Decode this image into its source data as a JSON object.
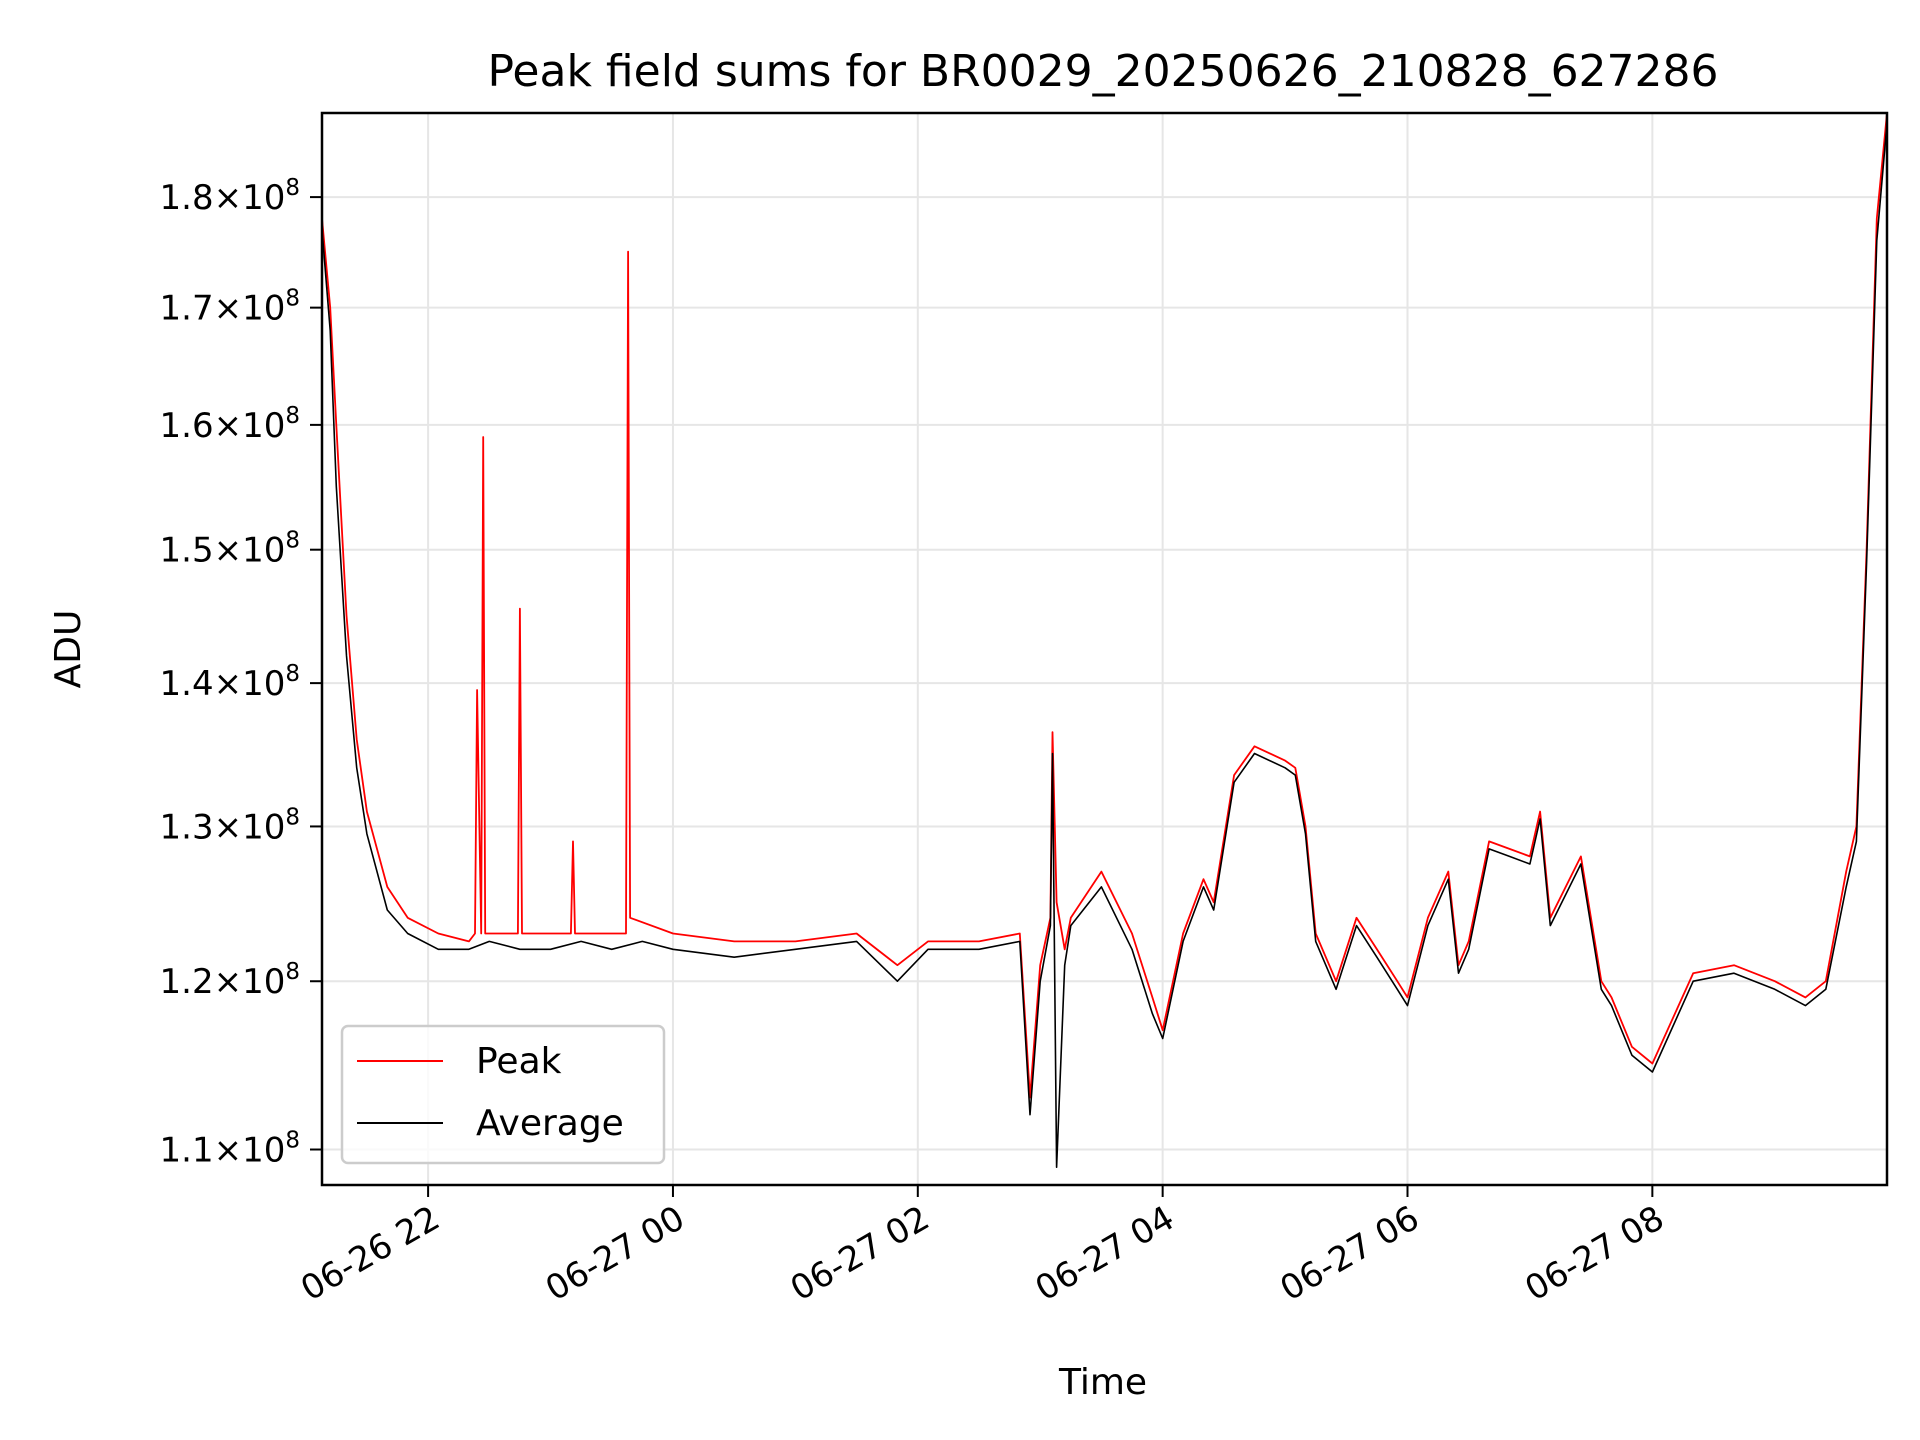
{
  "chart_data": {
    "type": "line",
    "title": "Peak field sums for BR0029_20250626_210828_627286",
    "xlabel": "Time",
    "ylabel": "ADU",
    "y_scale": "log",
    "x_range": [
      "2025-06-26 21:08",
      "2025-06-27 09:55"
    ],
    "ylim": [
      108000000,
      188000000
    ],
    "grid": true,
    "legend_position": "lower-left",
    "x_ticks": [
      {
        "value": "2025-06-26 22:00",
        "label": "06-26 22"
      },
      {
        "value": "2025-06-27 00:00",
        "label": "06-27 00"
      },
      {
        "value": "2025-06-27 02:00",
        "label": "06-27 02"
      },
      {
        "value": "2025-06-27 04:00",
        "label": "06-27 04"
      },
      {
        "value": "2025-06-27 06:00",
        "label": "06-27 06"
      },
      {
        "value": "2025-06-27 08:00",
        "label": "06-27 08"
      }
    ],
    "y_ticks": [
      {
        "value": 110000000,
        "mantissa": "1.1",
        "exp": "8"
      },
      {
        "value": 120000000,
        "mantissa": "1.2",
        "exp": "8"
      },
      {
        "value": 130000000,
        "mantissa": "1.3",
        "exp": "8"
      },
      {
        "value": 140000000,
        "mantissa": "1.4",
        "exp": "8"
      },
      {
        "value": 150000000,
        "mantissa": "1.5",
        "exp": "8"
      },
      {
        "value": 160000000,
        "mantissa": "1.6",
        "exp": "8"
      },
      {
        "value": 170000000,
        "mantissa": "1.7",
        "exp": "8"
      },
      {
        "value": 180000000,
        "mantissa": "1.8",
        "exp": "8"
      }
    ],
    "series": [
      {
        "name": "Peak",
        "color": "#ff0000",
        "x": [
          "2025-06-26 21:08",
          "2025-06-26 21:12",
          "2025-06-26 21:15",
          "2025-06-26 21:20",
          "2025-06-26 21:25",
          "2025-06-26 21:30",
          "2025-06-26 21:40",
          "2025-06-26 21:50",
          "2025-06-26 22:05",
          "2025-06-26 22:20",
          "2025-06-26 22:23",
          "2025-06-26 22:24",
          "2025-06-26 22:26",
          "2025-06-26 22:27",
          "2025-06-26 22:28",
          "2025-06-26 22:40",
          "2025-06-26 22:44",
          "2025-06-26 22:45",
          "2025-06-26 22:46",
          "2025-06-26 23:00",
          "2025-06-26 23:10",
          "2025-06-26 23:11",
          "2025-06-26 23:12",
          "2025-06-26 23:30",
          "2025-06-26 23:37",
          "2025-06-26 23:38",
          "2025-06-26 23:39",
          "2025-06-27 00:00",
          "2025-06-27 00:30",
          "2025-06-27 01:00",
          "2025-06-27 01:30",
          "2025-06-27 01:50",
          "2025-06-27 02:05",
          "2025-06-27 02:30",
          "2025-06-27 02:50",
          "2025-06-27 02:55",
          "2025-06-27 03:00",
          "2025-06-27 03:05",
          "2025-06-27 03:06",
          "2025-06-27 03:08",
          "2025-06-27 03:12",
          "2025-06-27 03:15",
          "2025-06-27 03:30",
          "2025-06-27 03:45",
          "2025-06-27 03:55",
          "2025-06-27 04:00",
          "2025-06-27 04:10",
          "2025-06-27 04:20",
          "2025-06-27 04:25",
          "2025-06-27 04:35",
          "2025-06-27 04:45",
          "2025-06-27 05:00",
          "2025-06-27 05:05",
          "2025-06-27 05:10",
          "2025-06-27 05:15",
          "2025-06-27 05:25",
          "2025-06-27 05:35",
          "2025-06-27 05:45",
          "2025-06-27 05:55",
          "2025-06-27 06:00",
          "2025-06-27 06:10",
          "2025-06-27 06:20",
          "2025-06-27 06:25",
          "2025-06-27 06:30",
          "2025-06-27 06:40",
          "2025-06-27 06:50",
          "2025-06-27 07:00",
          "2025-06-27 07:05",
          "2025-06-27 07:10",
          "2025-06-27 07:25",
          "2025-06-27 07:35",
          "2025-06-27 07:40",
          "2025-06-27 07:50",
          "2025-06-27 08:00",
          "2025-06-27 08:20",
          "2025-06-27 08:40",
          "2025-06-27 09:00",
          "2025-06-27 09:15",
          "2025-06-27 09:25",
          "2025-06-27 09:35",
          "2025-06-27 09:40",
          "2025-06-27 09:45",
          "2025-06-27 09:50",
          "2025-06-27 09:55"
        ],
        "values": [
          178000000,
          170000000,
          160000000,
          145000000,
          136000000,
          131000000,
          126000000,
          124000000,
          123000000,
          122500000,
          123000000,
          139500000,
          123000000,
          159000000,
          123000000,
          123000000,
          123000000,
          145500000,
          123000000,
          123000000,
          123000000,
          129000000,
          123000000,
          123000000,
          123000000,
          175000000,
          124000000,
          123000000,
          122500000,
          122500000,
          123000000,
          121000000,
          122500000,
          122500000,
          123000000,
          113000000,
          121000000,
          124000000,
          136500000,
          125000000,
          122000000,
          124000000,
          127000000,
          123000000,
          119000000,
          117000000,
          123000000,
          126500000,
          125000000,
          133500000,
          135500000,
          134500000,
          134000000,
          130000000,
          123000000,
          120000000,
          124000000,
          122000000,
          120000000,
          119000000,
          124000000,
          127000000,
          121000000,
          122500000,
          129000000,
          128500000,
          128000000,
          131000000,
          124000000,
          128000000,
          120000000,
          119000000,
          116000000,
          115000000,
          120500000,
          121000000,
          120000000,
          119000000,
          120000000,
          127000000,
          130000000,
          150000000,
          178000000,
          188000000
        ]
      },
      {
        "name": "Average",
        "color": "#000000",
        "x": [
          "2025-06-26 21:08",
          "2025-06-26 21:12",
          "2025-06-26 21:15",
          "2025-06-26 21:20",
          "2025-06-26 21:25",
          "2025-06-26 21:30",
          "2025-06-26 21:40",
          "2025-06-26 21:50",
          "2025-06-26 22:05",
          "2025-06-26 22:20",
          "2025-06-26 22:30",
          "2025-06-26 22:45",
          "2025-06-26 23:00",
          "2025-06-26 23:15",
          "2025-06-26 23:30",
          "2025-06-26 23:45",
          "2025-06-27 00:00",
          "2025-06-27 00:30",
          "2025-06-27 01:00",
          "2025-06-27 01:30",
          "2025-06-27 01:50",
          "2025-06-27 02:05",
          "2025-06-27 02:30",
          "2025-06-27 02:50",
          "2025-06-27 02:55",
          "2025-06-27 03:00",
          "2025-06-27 03:05",
          "2025-06-27 03:06",
          "2025-06-27 03:08",
          "2025-06-27 03:12",
          "2025-06-27 03:15",
          "2025-06-27 03:30",
          "2025-06-27 03:45",
          "2025-06-27 03:55",
          "2025-06-27 04:00",
          "2025-06-27 04:10",
          "2025-06-27 04:20",
          "2025-06-27 04:25",
          "2025-06-27 04:35",
          "2025-06-27 04:45",
          "2025-06-27 05:00",
          "2025-06-27 05:05",
          "2025-06-27 05:10",
          "2025-06-27 05:15",
          "2025-06-27 05:25",
          "2025-06-27 05:35",
          "2025-06-27 05:45",
          "2025-06-27 05:55",
          "2025-06-27 06:00",
          "2025-06-27 06:10",
          "2025-06-27 06:20",
          "2025-06-27 06:25",
          "2025-06-27 06:30",
          "2025-06-27 06:40",
          "2025-06-27 06:50",
          "2025-06-27 07:00",
          "2025-06-27 07:05",
          "2025-06-27 07:10",
          "2025-06-27 07:25",
          "2025-06-27 07:35",
          "2025-06-27 07:40",
          "2025-06-27 07:50",
          "2025-06-27 08:00",
          "2025-06-27 08:20",
          "2025-06-27 08:40",
          "2025-06-27 09:00",
          "2025-06-27 09:15",
          "2025-06-27 09:25",
          "2025-06-27 09:35",
          "2025-06-27 09:40",
          "2025-06-27 09:45",
          "2025-06-27 09:50",
          "2025-06-27 09:55"
        ],
        "values": [
          177000000,
          168000000,
          155000000,
          142000000,
          134000000,
          129500000,
          124500000,
          123000000,
          122000000,
          122000000,
          122500000,
          122000000,
          122000000,
          122500000,
          122000000,
          122500000,
          122000000,
          121500000,
          122000000,
          122500000,
          120000000,
          122000000,
          122000000,
          122500000,
          112000000,
          120000000,
          123500000,
          135000000,
          109000000,
          121000000,
          123500000,
          126000000,
          122000000,
          118000000,
          116500000,
          122500000,
          126000000,
          124500000,
          133000000,
          135000000,
          134000000,
          133500000,
          129500000,
          122500000,
          119500000,
          123500000,
          121500000,
          119500000,
          118500000,
          123500000,
          126500000,
          120500000,
          122000000,
          128500000,
          128000000,
          127500000,
          130500000,
          123500000,
          127500000,
          119500000,
          118500000,
          115500000,
          114500000,
          120000000,
          120500000,
          119500000,
          118500000,
          119500000,
          126000000,
          129000000,
          149000000,
          176000000,
          187000000
        ]
      }
    ]
  }
}
